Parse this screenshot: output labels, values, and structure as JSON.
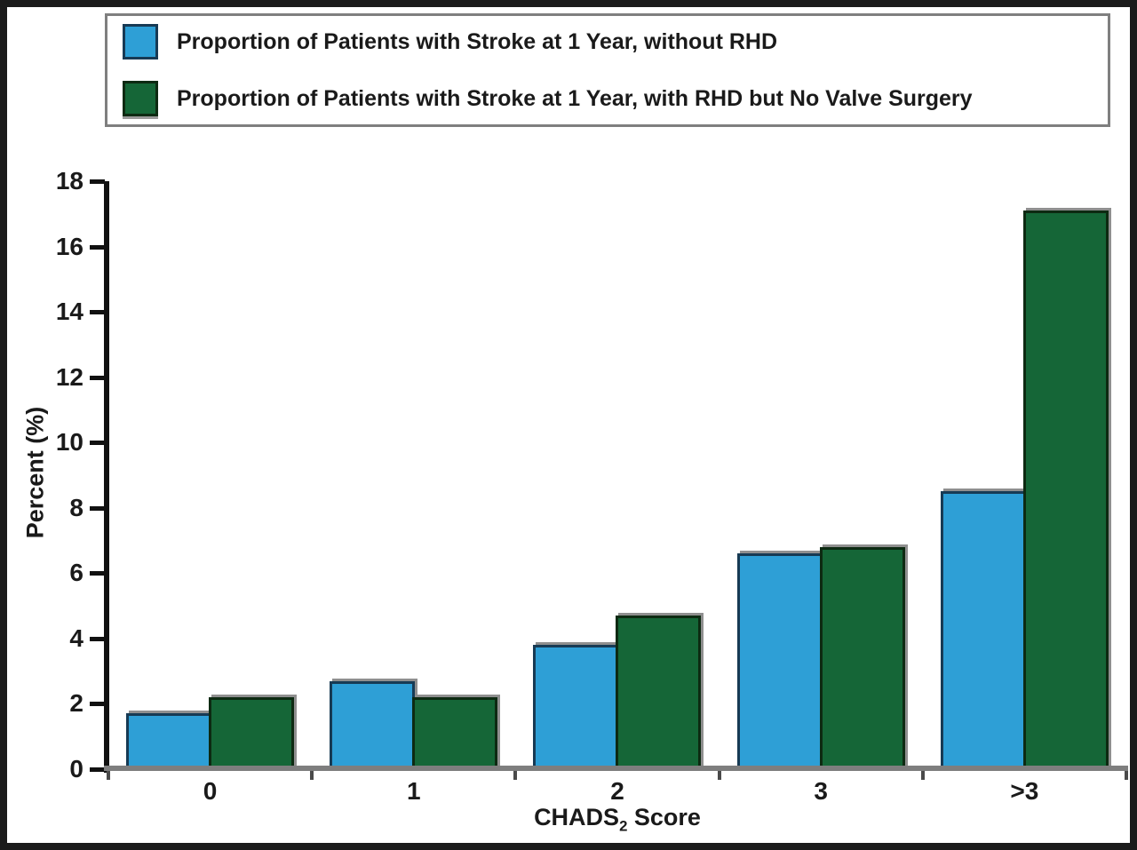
{
  "figure": {
    "background": "#ffffff",
    "frame_color": "#1b1b1b"
  },
  "chart_data": {
    "type": "bar",
    "title": "",
    "categories": [
      "0",
      "1",
      "2",
      "3",
      ">3"
    ],
    "series": [
      {
        "name": "Proportion of Patients with Stroke at 1 Year, without RHD",
        "color": "#2e9fd6",
        "border_color": "#173a54",
        "values": [
          1.7,
          2.7,
          3.8,
          6.6,
          8.5
        ]
      },
      {
        "name": "Proportion of Patients with Stroke at 1 Year, with RHD but No Valve Surgery",
        "color": "#156637",
        "border_color": "#0d2a12",
        "values": [
          2.2,
          2.2,
          4.7,
          6.8,
          17.1
        ]
      }
    ],
    "xlabel": {
      "text": "CHADS",
      "subscript": "2",
      "suffix": " Score"
    },
    "ylabel": "Percent (%)",
    "ylim": [
      0,
      18
    ],
    "yticks": [
      0,
      2,
      4,
      6,
      8,
      10,
      12,
      14,
      16,
      18
    ],
    "grid": false,
    "legend_position": "top-box"
  }
}
